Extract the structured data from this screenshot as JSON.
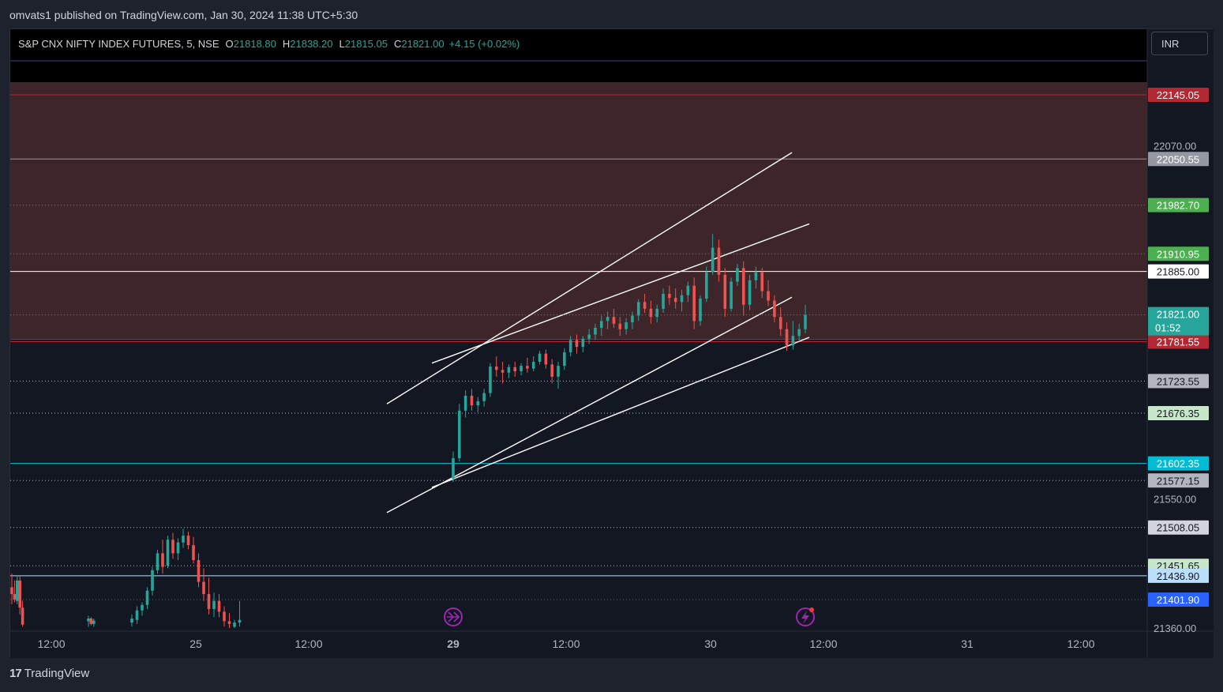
{
  "header": {
    "publish_line": "omvats1 published on TradingView.com, Jan 30, 2024 11:38 UTC+5:30"
  },
  "legend": {
    "symbol": "S&P CNX NIFTY INDEX FUTURES, 5, NSE",
    "o_label": "O",
    "o_value": "21818.80",
    "h_label": "H",
    "h_value": "21838.20",
    "l_label": "L",
    "l_value": "21815.05",
    "c_label": "C",
    "c_value": "21821.00",
    "change": "+4.15 (+0.02%)"
  },
  "currency": "INR",
  "footer": {
    "brand": "TradingView",
    "logo_glyph": "17"
  },
  "colors": {
    "up": "#26a69a",
    "down": "#ef5350",
    "zone": "#3d2529",
    "background": "#131722"
  },
  "chart_data": {
    "type": "candlestick",
    "title": "S&P CNX NIFTY INDEX FUTURES, 5, NSE",
    "ylim": [
      21360,
      22250
    ],
    "y_ticks": [
      "22070.00",
      "21550.00",
      "21360.00"
    ],
    "x_ticks": [
      "12:00",
      "25",
      "12:00",
      "29",
      "12:00",
      "30",
      "12:00",
      "31",
      "12:00"
    ],
    "supply_zone": {
      "from": 21785,
      "to": 22195
    },
    "levels": [
      {
        "price": "22145.05",
        "bg": "#b22833",
        "fg": "#ffffff",
        "line": "#b22833",
        "style": "solid"
      },
      {
        "price": "22050.55",
        "bg": "#9598a1",
        "fg": "#ffffff",
        "line": "#9598a1",
        "style": "solid"
      },
      {
        "price": "21982.70",
        "bg": "#4caf50",
        "fg": "#ffffff",
        "line": "#6b8e23",
        "style": "dotted"
      },
      {
        "price": "21910.95",
        "bg": "#4caf50",
        "fg": "#ffffff",
        "line": "#6b8e23",
        "style": "dotted"
      },
      {
        "price": "21885.00",
        "bg": "#ffffff",
        "fg": "#131722",
        "line": "#ffffff",
        "style": "solid"
      },
      {
        "price": "21781.55",
        "bg": "#b22833",
        "fg": "#ffffff",
        "line": "#b22833",
        "style": "solid"
      },
      {
        "price": "21723.55",
        "bg": "#b2b5be",
        "fg": "#131722",
        "line": "#b2b5be",
        "style": "dotted"
      },
      {
        "price": "21676.35",
        "bg": "#c8e6c9",
        "fg": "#131722",
        "line": "#b2b5be",
        "style": "dotted"
      },
      {
        "price": "21602.35",
        "bg": "#00bcd4",
        "fg": "#ffffff",
        "line": "#00bcd4",
        "style": "solid"
      },
      {
        "price": "21577.15",
        "bg": "#b2b5be",
        "fg": "#131722",
        "line": "#b2b5be",
        "style": "dotted"
      },
      {
        "price": "21508.05",
        "bg": "#d1d4dc",
        "fg": "#131722",
        "line": "#b2b5be",
        "style": "dotted"
      },
      {
        "price": "21451.65",
        "bg": "#c8e6c9",
        "fg": "#131722",
        "line": "#b2b5be",
        "style": "dotted"
      },
      {
        "price": "21436.90",
        "bg": "#bbdefb",
        "fg": "#131722",
        "line": "#bbdefb",
        "style": "solid"
      },
      {
        "price": "21401.90",
        "bg": "#2962ff",
        "fg": "#ffffff",
        "line": "#2962ff",
        "style": "dotted"
      }
    ],
    "last_price": {
      "price": "21821.00",
      "countdown": "01:52",
      "bg": "#26a69a"
    },
    "trendlines": [
      {
        "p1": [
          "24 Jan 22:30",
          21690
        ],
        "p2": [
          "30 Jan 14:00",
          22060
        ]
      },
      {
        "p1": [
          "25 Jan 13:00",
          21750
        ],
        "p2": [
          "30 Jan 14:30",
          21955
        ]
      },
      {
        "p1": [
          "24 Jan 22:30",
          21530
        ],
        "p2": [
          "30 Jan 14:00",
          21847
        ]
      },
      {
        "p1": [
          "25 Jan 13:00",
          21567
        ],
        "p2": [
          "30 Jan 14:30",
          21788
        ]
      }
    ],
    "candles": [
      [
        21420,
        21440,
        21395,
        21410
      ],
      [
        21410,
        21430,
        21398,
        21402
      ],
      [
        21400,
        21438,
        21395,
        21430
      ],
      [
        21430,
        21436,
        21380,
        21390
      ],
      [
        21390,
        21400,
        21362,
        21365
      ],
      [
        21370,
        21378,
        21362,
        21374
      ],
      [
        21374,
        21376,
        21364,
        21366
      ],
      [
        21366,
        21374,
        21362,
        21371
      ],
      [
        21368,
        21380,
        21362,
        21374
      ],
      [
        21372,
        21392,
        21366,
        21386
      ],
      [
        21386,
        21398,
        21378,
        21394
      ],
      [
        21394,
        21420,
        21388,
        21415
      ],
      [
        21415,
        21450,
        21408,
        21445
      ],
      [
        21445,
        21475,
        21440,
        21470
      ],
      [
        21470,
        21490,
        21440,
        21450
      ],
      [
        21452,
        21496,
        21448,
        21490
      ],
      [
        21490,
        21500,
        21462,
        21470
      ],
      [
        21470,
        21492,
        21460,
        21486
      ],
      [
        21486,
        21506,
        21478,
        21496
      ],
      [
        21496,
        21502,
        21476,
        21482
      ],
      [
        21482,
        21494,
        21455,
        21460
      ],
      [
        21460,
        21470,
        21420,
        21428
      ],
      [
        21428,
        21448,
        21400,
        21410
      ],
      [
        21410,
        21434,
        21380,
        21388
      ],
      [
        21388,
        21412,
        21376,
        21400
      ],
      [
        21400,
        21410,
        21376,
        21384
      ],
      [
        21384,
        21392,
        21362,
        21370
      ],
      [
        21370,
        21382,
        21360,
        21366
      ],
      [
        21362,
        21372,
        21360,
        21368
      ],
      [
        21368,
        21400,
        21362,
        21372
      ],
      [
        21580,
        21620,
        21575,
        21610
      ],
      [
        21610,
        21690,
        21605,
        21680
      ],
      [
        21680,
        21710,
        21670,
        21702
      ],
      [
        21702,
        21712,
        21680,
        21688
      ],
      [
        21688,
        21700,
        21678,
        21694
      ],
      [
        21694,
        21712,
        21686,
        21706
      ],
      [
        21706,
        21750,
        21700,
        21745
      ],
      [
        21745,
        21760,
        21730,
        21740
      ],
      [
        21740,
        21752,
        21720,
        21736
      ],
      [
        21736,
        21748,
        21728,
        21744
      ],
      [
        21744,
        21752,
        21730,
        21738
      ],
      [
        21738,
        21750,
        21732,
        21746
      ],
      [
        21746,
        21758,
        21736,
        21742
      ],
      [
        21742,
        21760,
        21738,
        21752
      ],
      [
        21752,
        21768,
        21748,
        21764
      ],
      [
        21764,
        21770,
        21742,
        21748
      ],
      [
        21748,
        21756,
        21720,
        21730
      ],
      [
        21730,
        21752,
        21712,
        21746
      ],
      [
        21746,
        21772,
        21740,
        21766
      ],
      [
        21766,
        21790,
        21760,
        21784
      ],
      [
        21784,
        21792,
        21764,
        21774
      ],
      [
        21774,
        21790,
        21766,
        21786
      ],
      [
        21786,
        21800,
        21778,
        21792
      ],
      [
        21792,
        21808,
        21784,
        21802
      ],
      [
        21802,
        21820,
        21790,
        21812
      ],
      [
        21812,
        21826,
        21800,
        21818
      ],
      [
        21818,
        21830,
        21802,
        21808
      ],
      [
        21808,
        21818,
        21790,
        21800
      ],
      [
        21800,
        21816,
        21792,
        21810
      ],
      [
        21810,
        21826,
        21800,
        21820
      ],
      [
        21820,
        21844,
        21812,
        21840
      ],
      [
        21840,
        21852,
        21824,
        21830
      ],
      [
        21830,
        21842,
        21808,
        21818
      ],
      [
        21818,
        21836,
        21810,
        21830
      ],
      [
        21830,
        21860,
        21824,
        21852
      ],
      [
        21852,
        21864,
        21836,
        21846
      ],
      [
        21846,
        21860,
        21830,
        21840
      ],
      [
        21840,
        21858,
        21826,
        21850
      ],
      [
        21850,
        21870,
        21840,
        21864
      ],
      [
        21864,
        21876,
        21800,
        21812
      ],
      [
        21812,
        21850,
        21805,
        21845
      ],
      [
        21845,
        21892,
        21840,
        21884
      ],
      [
        21884,
        21940,
        21880,
        21920
      ],
      [
        21920,
        21932,
        21870,
        21880
      ],
      [
        21880,
        21890,
        21818,
        21830
      ],
      [
        21830,
        21876,
        21826,
        21870
      ],
      [
        21870,
        21896,
        21864,
        21890
      ],
      [
        21890,
        21900,
        21820,
        21836
      ],
      [
        21836,
        21880,
        21828,
        21872
      ],
      [
        21872,
        21892,
        21860,
        21884
      ],
      [
        21884,
        21890,
        21846,
        21856
      ],
      [
        21856,
        21872,
        21834,
        21842
      ],
      [
        21842,
        21850,
        21810,
        21818
      ],
      [
        21818,
        21832,
        21790,
        21800
      ],
      [
        21800,
        21810,
        21768,
        21776
      ],
      [
        21776,
        21812,
        21770,
        21790
      ],
      [
        21790,
        21808,
        21782,
        21800
      ],
      [
        21800,
        21836,
        21794,
        21821
      ]
    ]
  }
}
